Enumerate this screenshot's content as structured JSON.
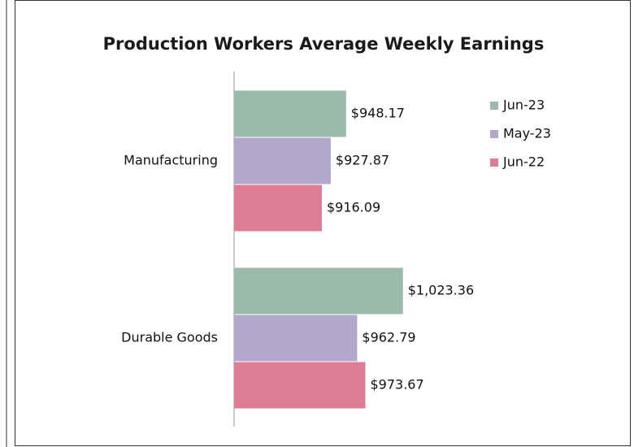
{
  "chart_data": {
    "type": "bar",
    "orientation": "horizontal",
    "title": "Production Workers Average Weekly Earnings",
    "categories": [
      "Manufacturing",
      "Durable Goods"
    ],
    "series": [
      {
        "name": "Jun-23",
        "color": "#9bbaaa",
        "values": [
          948.17,
          1023.36
        ],
        "value_labels": [
          "$948.17",
          "$1,023.36"
        ]
      },
      {
        "name": "May-23",
        "color": "#b3a7cb",
        "values": [
          927.87,
          962.79
        ],
        "value_labels": [
          "$927.87",
          "$962.79"
        ]
      },
      {
        "name": "Jun-22",
        "color": "#dc7d93",
        "values": [
          916.09,
          973.67
        ],
        "value_labels": [
          "$916.09",
          "$973.67"
        ]
      }
    ],
    "xlim": [
      800,
      1100
    ],
    "legend": "right"
  }
}
